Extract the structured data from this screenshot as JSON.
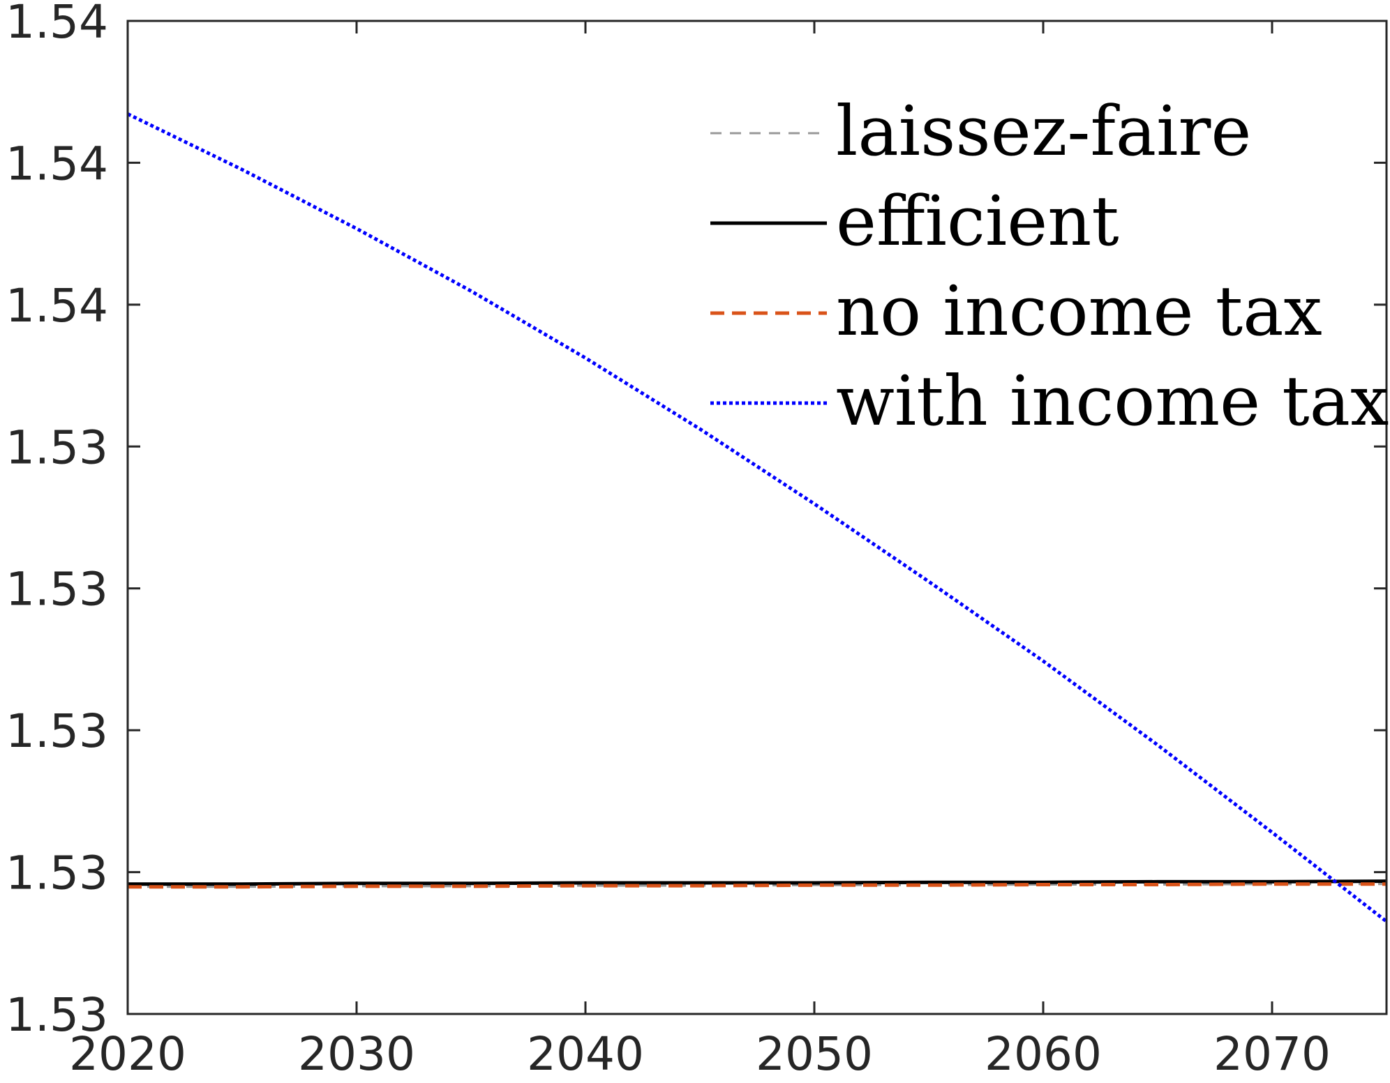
{
  "chart_data": {
    "type": "line",
    "title": "",
    "xlabel": "",
    "ylabel": "",
    "xlim": [
      2020,
      2075
    ],
    "ylim": [
      1.525,
      1.5425
    ],
    "x_ticks": [
      2020,
      2030,
      2040,
      2050,
      2060,
      2070
    ],
    "x_tick_labels": [
      "2020",
      "2030",
      "2040",
      "2050",
      "2060",
      "2070"
    ],
    "y_ticks": [
      1.525,
      1.5275,
      1.53,
      1.5325,
      1.535,
      1.5375,
      1.54,
      1.5425
    ],
    "y_tick_labels": [
      "1.53",
      "1.53",
      "1.53",
      "1.53",
      "1.53",
      "1.54",
      "1.54",
      "1.54"
    ],
    "grid": false,
    "box": true,
    "legend_position": "top-right",
    "x": [
      2020,
      2025,
      2030,
      2035,
      2040,
      2045,
      2050,
      2055,
      2060,
      2065,
      2070,
      2075
    ],
    "series": [
      {
        "name": "laissez-faire",
        "color": "#999999",
        "style": "dashed",
        "values": [
          1.52724,
          1.52724,
          1.52725,
          1.52725,
          1.52726,
          1.52726,
          1.52727,
          1.52727,
          1.52728,
          1.52728,
          1.52729,
          1.52729
        ]
      },
      {
        "name": "efficient",
        "color": "#000000",
        "style": "solid",
        "values": [
          1.52729,
          1.52729,
          1.5273,
          1.5273,
          1.52731,
          1.52731,
          1.52731,
          1.52732,
          1.52732,
          1.52733,
          1.52733,
          1.52734
        ]
      },
      {
        "name": "no income tax",
        "color": "#d95319",
        "style": "dashed",
        "values": [
          1.52724,
          1.52724,
          1.52725,
          1.52725,
          1.52726,
          1.52726,
          1.52727,
          1.52727,
          1.52728,
          1.52728,
          1.52729,
          1.52729
        ]
      },
      {
        "name": "with income tax",
        "color": "#0000ff",
        "style": "dotted",
        "values": [
          1.54086,
          1.53988,
          1.53884,
          1.53774,
          1.53656,
          1.53531,
          1.53399,
          1.53262,
          1.53122,
          1.52974,
          1.5282,
          1.52663
        ]
      }
    ]
  }
}
